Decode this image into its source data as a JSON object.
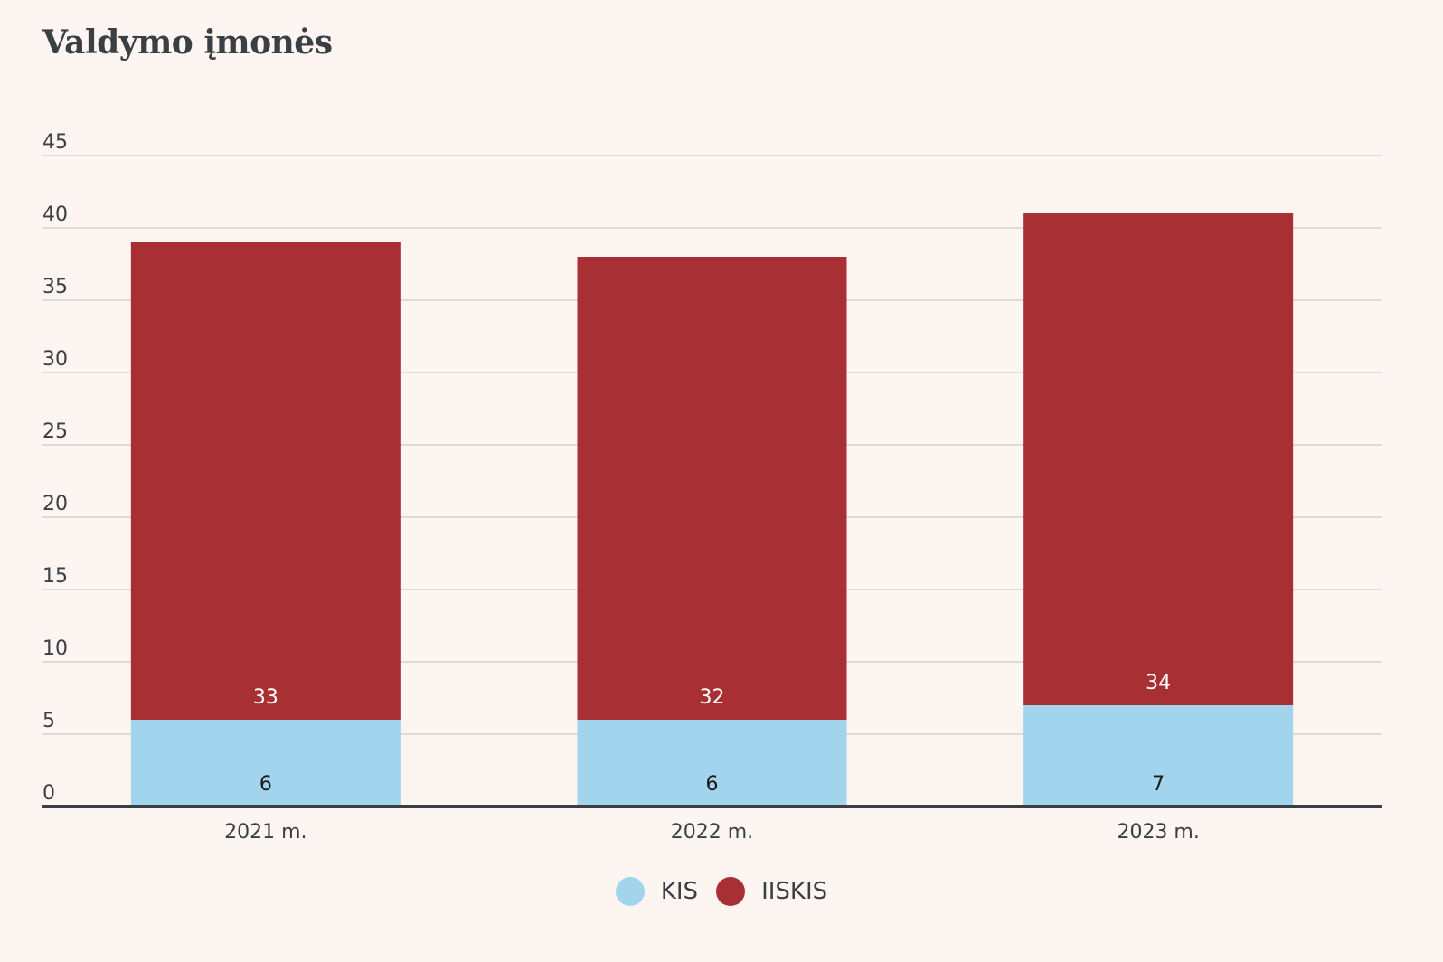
{
  "title": "Valdymo įmonės",
  "colors": {
    "background": "#fdf5f2",
    "kis": "#a2d4ed",
    "iiskis": "#a83034",
    "grid": "#d4d1cf",
    "axis": "#3a3f44",
    "text": "#3a3f44"
  },
  "chart_data": {
    "type": "bar",
    "stacked": true,
    "categories": [
      "2021 m.",
      "2022 m.",
      "2023 m."
    ],
    "series": [
      {
        "name": "KIS",
        "values": [
          6,
          6,
          7
        ],
        "color": "#a2d4ed",
        "label_color": "#1a1a1a"
      },
      {
        "name": "IISKIS",
        "values": [
          33,
          32,
          34
        ],
        "color": "#a83034",
        "label_color": "#ffffff"
      }
    ],
    "ylim": [
      0,
      45
    ],
    "yticks": [
      0,
      5,
      10,
      15,
      20,
      25,
      30,
      35,
      40,
      45
    ],
    "grid": true,
    "legend_position": "bottom-center",
    "xlabel": "",
    "ylabel": ""
  },
  "legend": {
    "items": [
      {
        "label": "KIS",
        "color": "#a2d4ed"
      },
      {
        "label": "IISKIS",
        "color": "#a83034"
      }
    ]
  }
}
